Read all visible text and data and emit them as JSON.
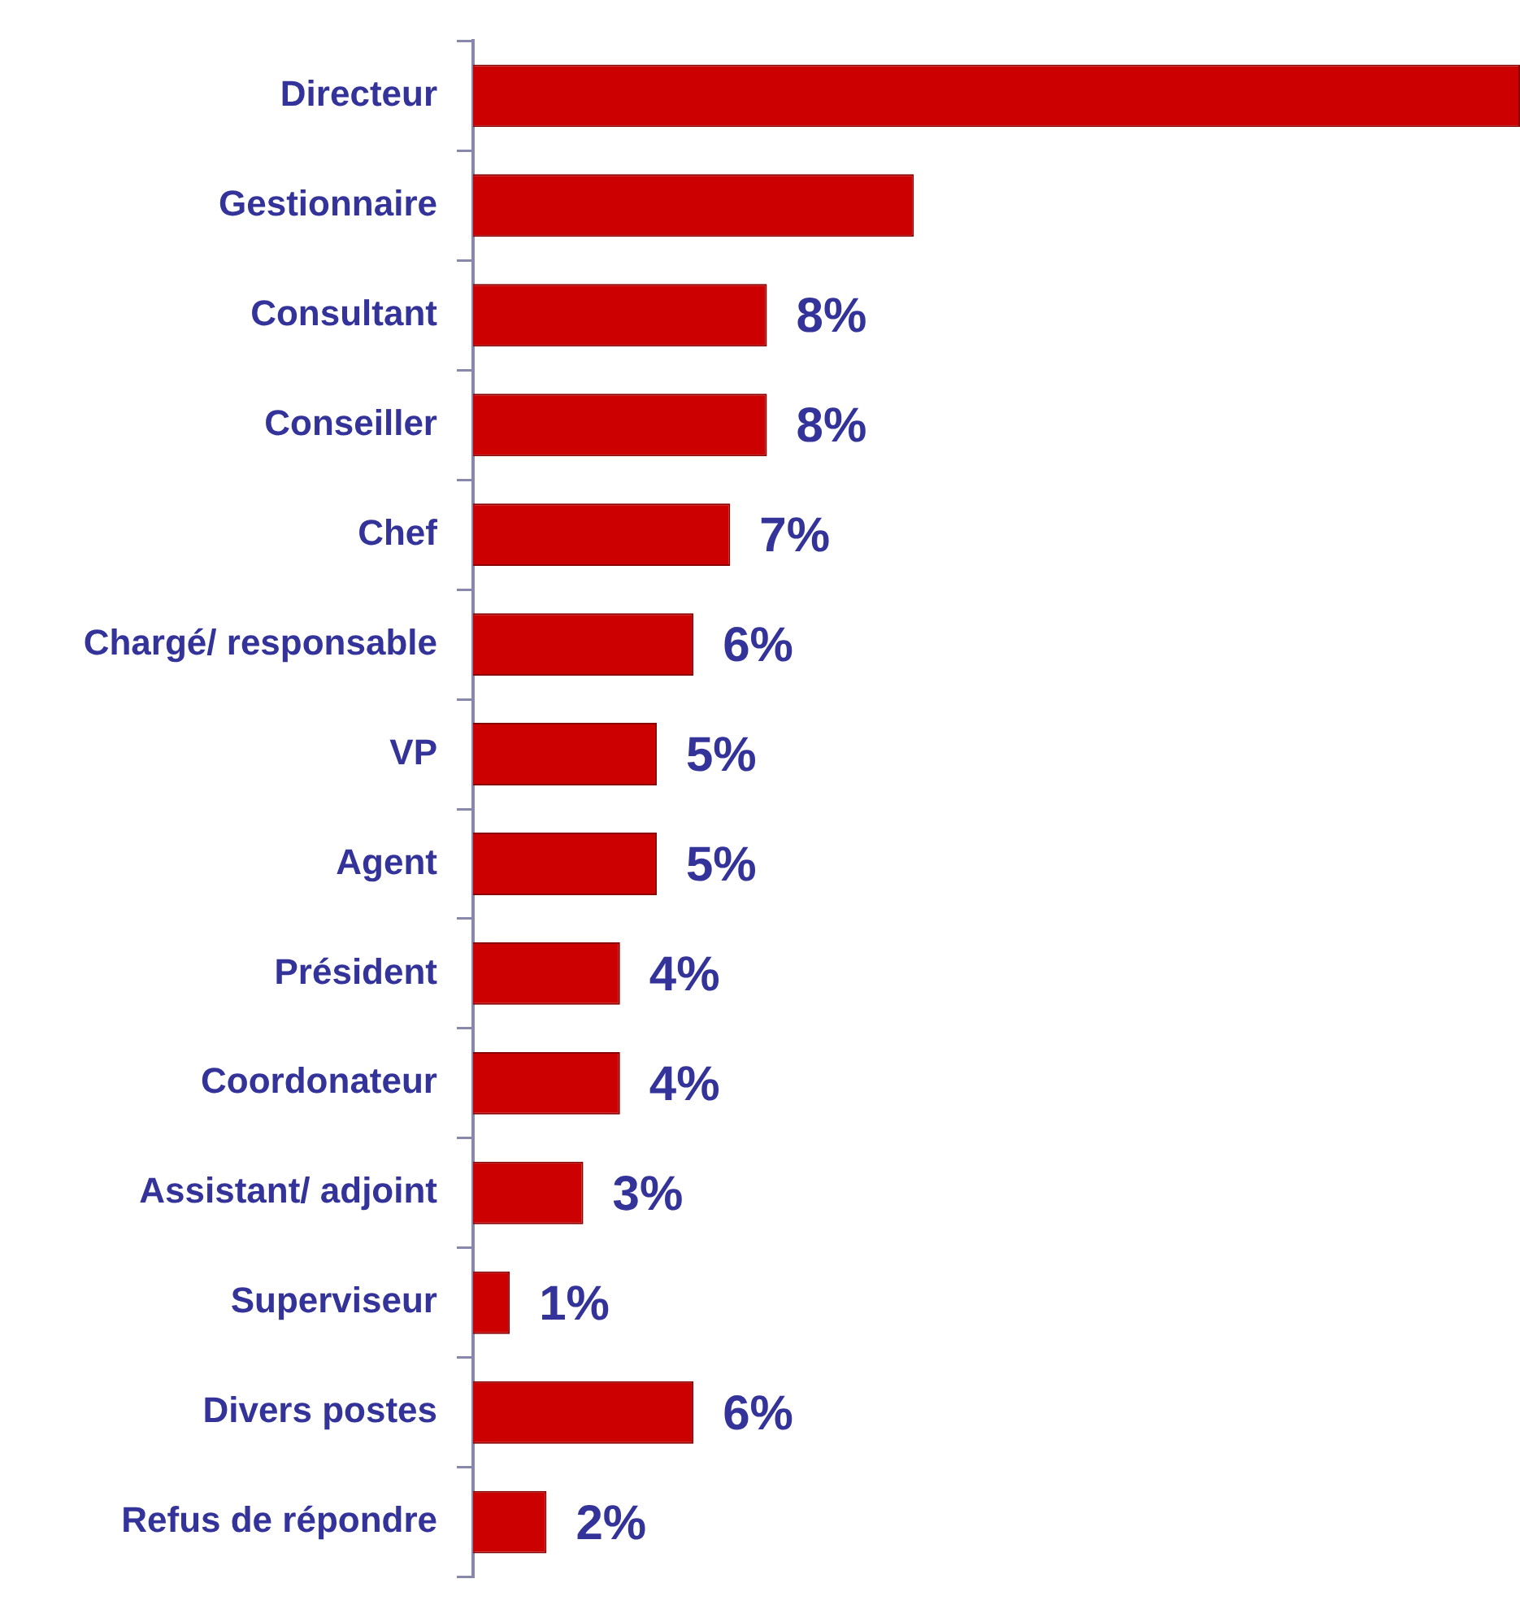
{
  "chart_data": {
    "type": "bar",
    "orientation": "horizontal",
    "categories": [
      "Directeur",
      "Gestionnaire",
      "Consultant",
      "Conseiller",
      "Chef",
      "Chargé/ responsable",
      "VP",
      "Agent",
      "Président",
      "Coordonateur",
      "Assistant/ adjoint",
      "Superviseur",
      "Divers postes",
      "Refus de répondre"
    ],
    "values": [
      28.5,
      12,
      8,
      8,
      7,
      6,
      5,
      5,
      4,
      4,
      3,
      1,
      6,
      2
    ],
    "value_labels": [
      null,
      null,
      "8%",
      "8%",
      "7%",
      "6%",
      "5%",
      "5%",
      "4%",
      "4%",
      "3%",
      "1%",
      "6%",
      "2%"
    ],
    "color": "#cc0000",
    "xlim": [
      0,
      28.5
    ],
    "legend": false,
    "tick_labels": "y"
  }
}
